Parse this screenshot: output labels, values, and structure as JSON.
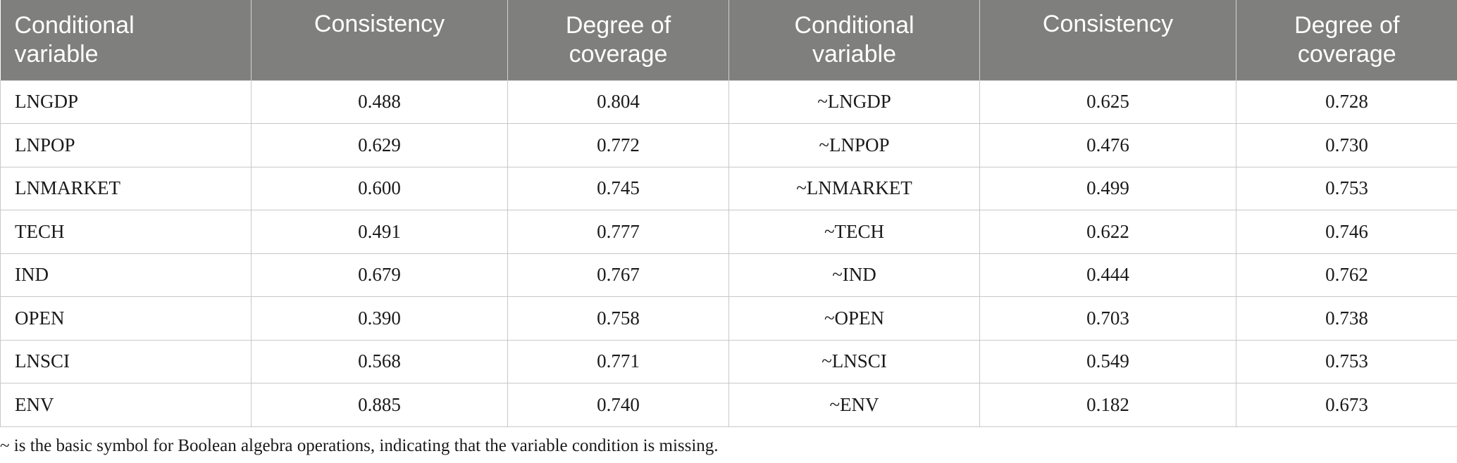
{
  "table": {
    "headers": [
      "Conditional variable",
      "Consistency",
      "Degree of coverage",
      "Conditional variable",
      "Consistency",
      "Degree of coverage"
    ],
    "header_lines": [
      [
        "Conditional",
        "variable"
      ],
      [
        "Consistency",
        ""
      ],
      [
        "Degree of",
        "coverage"
      ],
      [
        "Conditional",
        "variable"
      ],
      [
        "Consistency",
        ""
      ],
      [
        "Degree of",
        "coverage"
      ]
    ],
    "rows": [
      [
        "LNGDP",
        "0.488",
        "0.804",
        "~LNGDP",
        "0.625",
        "0.728"
      ],
      [
        "LNPOP",
        "0.629",
        "0.772",
        "~LNPOP",
        "0.476",
        "0.730"
      ],
      [
        "LNMARKET",
        "0.600",
        "0.745",
        "~LNMARKET",
        "0.499",
        "0.753"
      ],
      [
        "TECH",
        "0.491",
        "0.777",
        "~TECH",
        "0.622",
        "0.746"
      ],
      [
        "IND",
        "0.679",
        "0.767",
        "~IND",
        "0.444",
        "0.762"
      ],
      [
        "OPEN",
        "0.390",
        "0.758",
        "~OPEN",
        "0.703",
        "0.738"
      ],
      [
        "LNSCI",
        "0.568",
        "0.771",
        "~LNSCI",
        "0.549",
        "0.753"
      ],
      [
        "ENV",
        "0.885",
        "0.740",
        "~ENV",
        "0.182",
        "0.673"
      ]
    ]
  },
  "footnote": "~ is the basic symbol for Boolean algebra operations, indicating that the variable condition is missing.",
  "colors": {
    "header_bg": "#7f7f7e",
    "header_text": "#ffffff",
    "grid_line": "#c8c8c8",
    "body_text": "#1a1a1a"
  }
}
